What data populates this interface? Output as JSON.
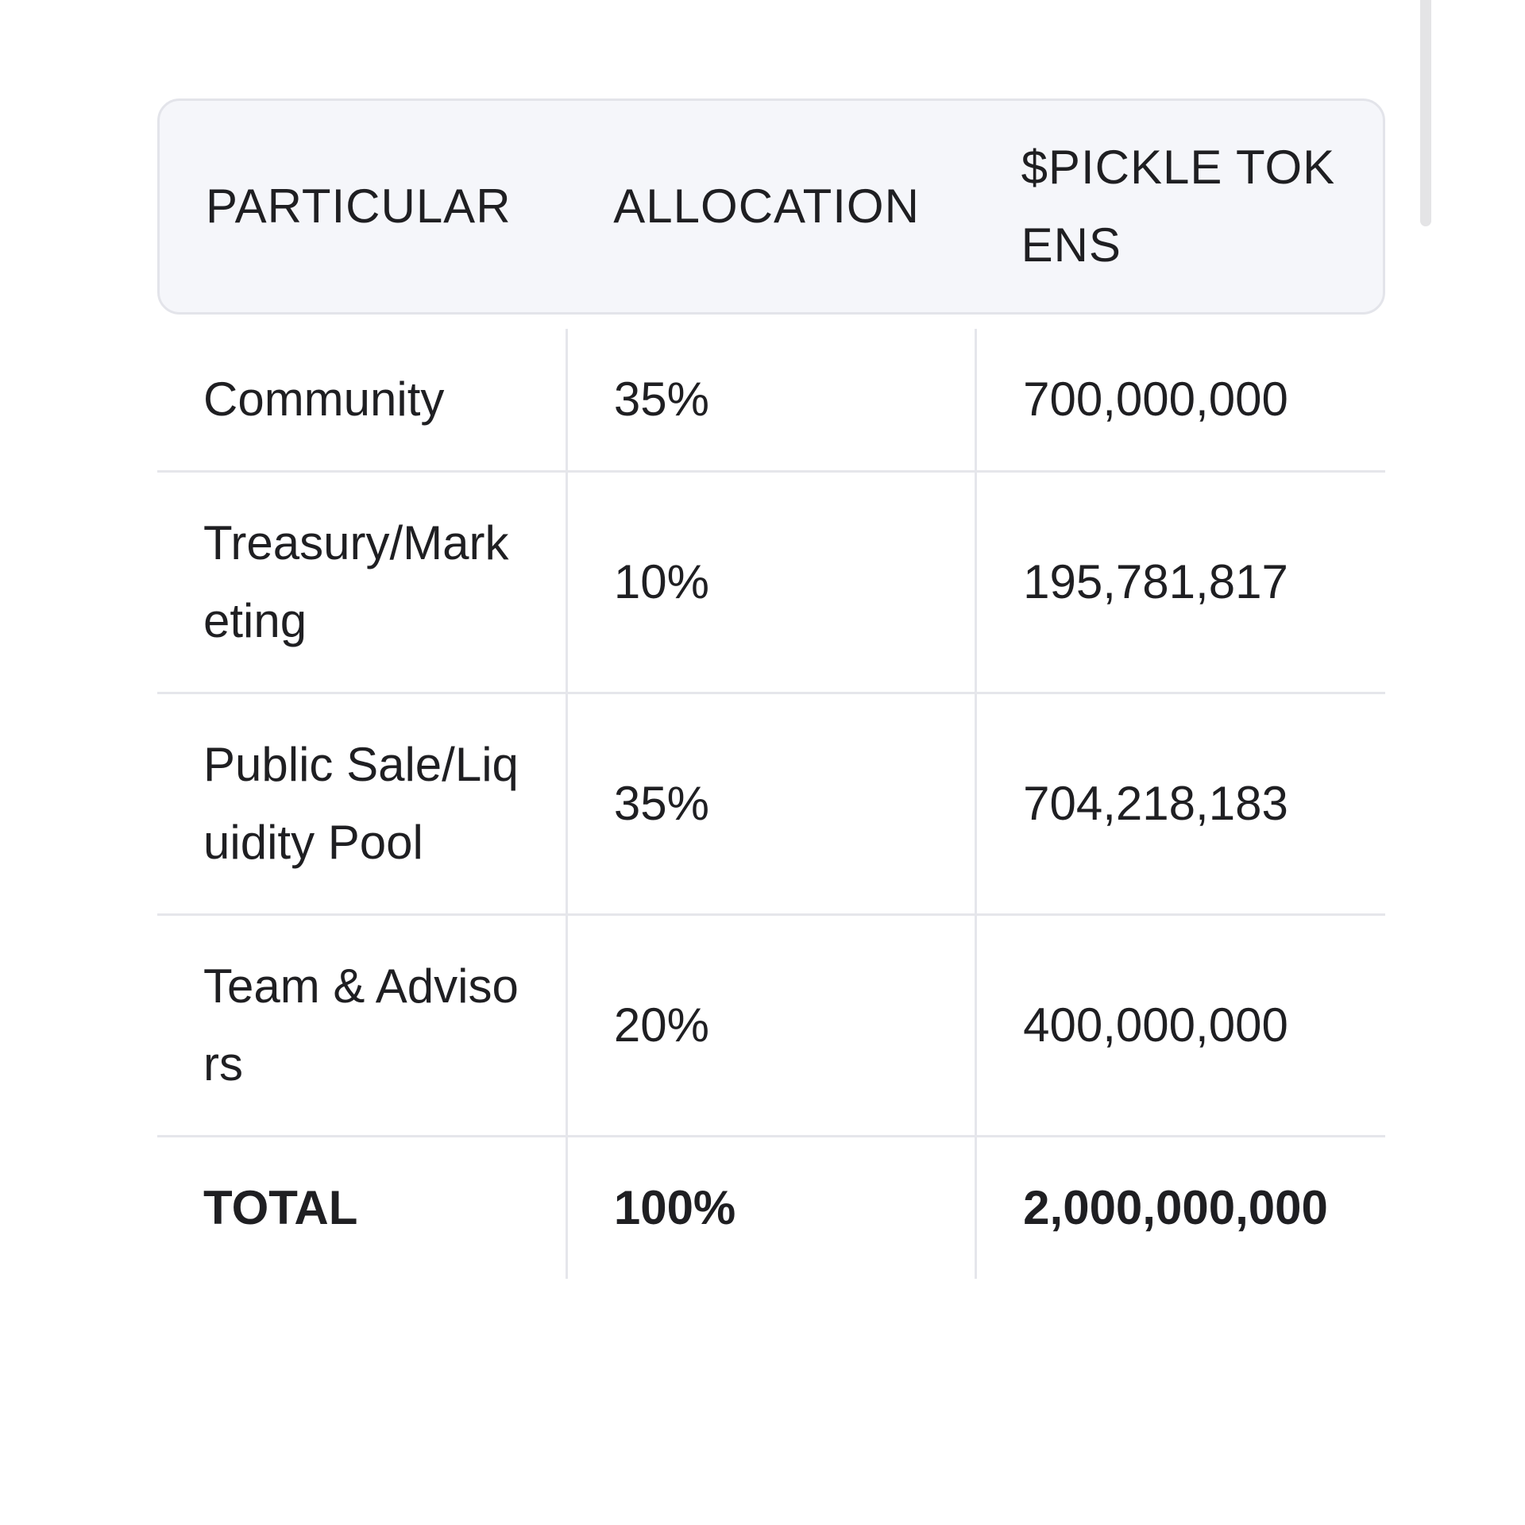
{
  "table": {
    "header": [
      "PARTICULAR",
      "ALLOCATION",
      "$PICKLE TOKENS"
    ],
    "rows": [
      [
        "Community",
        "35%",
        "700,000,000"
      ],
      [
        "Treasury/Marketing",
        "10%",
        "195,781,817"
      ],
      [
        "Public Sale/Liquidity Pool",
        "35%",
        "704,218,183"
      ],
      [
        "Team & Advisors",
        "20%",
        "400,000,000"
      ],
      [
        "TOTAL",
        "100%",
        "2,000,000,000"
      ]
    ]
  }
}
